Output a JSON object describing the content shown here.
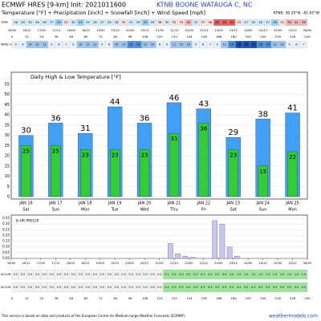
{
  "header": {
    "model": "ECMWF HRES [9-km] Init: 2021011600",
    "station": "KTNB BOONE WATAUGA C, NC",
    "subtitle": "Temperature [°F] + Precipitation [inch] + Snowfall [inch] + Wind Speed [mph]",
    "coords": "KTNB: 36.20°N, -81.65°W"
  },
  "strips": {
    "temp_label": "TEMP",
    "temps": [
      "28",
      "26",
      "30",
      "28",
      "26",
      "27",
      "25",
      "32",
      "30",
      "23",
      "29",
      "28",
      "27",
      "29",
      "28",
      "32",
      "31",
      "29",
      "25",
      "29",
      "36",
      "30",
      "35",
      "33",
      "40",
      "31",
      "37",
      "36",
      "45",
      "42",
      "43",
      "33",
      "27",
      "30",
      "28",
      "27",
      "25",
      "32",
      "38",
      "41",
      "39"
    ],
    "dates": [
      "16/00",
      "16/12",
      "17/00",
      "17/12",
      "18/00",
      "18/12",
      "19/00",
      "19/12",
      "20/00",
      "20/12",
      "21/00",
      "21/12",
      "22/00",
      "22/12",
      "23/00",
      "23/12",
      "24/00",
      "24/12",
      "25/00",
      "25/12",
      "26/00"
    ],
    "hours": [
      "0",
      "12",
      "24",
      "36",
      "48",
      "60",
      "72",
      "84",
      "96",
      "108",
      "120",
      "132",
      "144",
      "156",
      "168",
      "180",
      "192",
      "204",
      "216",
      "228",
      "240"
    ],
    "wind_label": "WIND mph",
    "wind": [
      "9",
      "8",
      "10",
      "12",
      "11",
      "9",
      "8",
      "7",
      "9",
      "10",
      "12",
      "11",
      "9",
      "8",
      "10",
      "13",
      "15",
      "14",
      "12",
      "10",
      "8",
      "9",
      "11",
      "12",
      "10",
      "9",
      "8",
      "7",
      "9",
      "11",
      "14",
      "18",
      "20",
      "19",
      "16",
      "14",
      "12",
      "10",
      "9",
      "8",
      "7"
    ],
    "accum_precip_label": "ACCUM PRECIP",
    "accum_precip": [
      "0.0",
      "0.0",
      "0.0",
      "0.0",
      "0.0",
      "0.0",
      "0.0",
      "0.0",
      "0.0",
      "0.0",
      "0.0",
      "0.0",
      "0.0",
      "0.0",
      "0.0",
      "0.0",
      "0.0",
      "0.0",
      "0.0",
      "0.0",
      "0.0",
      "0.1",
      "0.2",
      "0.2",
      "0.2",
      "0.2",
      "0.2",
      "0.2",
      "0.5",
      "0.9",
      "1.0",
      "1.0",
      "1.0",
      "1.0",
      "1.0",
      "1.0",
      "1.0",
      "1.0",
      "1.0",
      "1.0",
      "1.0"
    ],
    "accum_snow_label": "ACCUM SNOW",
    "accum_snow": [
      "0.0",
      "0.0",
      "0.0",
      "0.0",
      "0.0",
      "0.0",
      "0.0",
      "0.0",
      "0.0",
      "0.0",
      "0.0",
      "0.0",
      "0.0",
      "0.0",
      "0.0",
      "0.0",
      "0.0",
      "0.0",
      "0.0",
      "0.0",
      "0.0",
      "0.4",
      "0.5",
      "0.5",
      "0.5",
      "0.5",
      "0.5",
      "0.5",
      "0.5",
      "0.5",
      "0.5",
      "0.5",
      "0.5",
      "0.5",
      "0.5",
      "0.5",
      "0.5",
      "0.5",
      "0.5",
      "0.5",
      "0.5"
    ]
  },
  "chart_data": [
    {
      "type": "bar",
      "title": "Daily High & Low Temperature [°F]",
      "categories": [
        "JAN 16",
        "JAN 17",
        "JAN 18",
        "JAN 19",
        "JAN 20",
        "JAN 21",
        "JAN 22",
        "JAN 23",
        "JAN 24",
        "JAN 25"
      ],
      "weekdays": [
        "Sat",
        "Sun",
        "Mon",
        "Tue",
        "Wed",
        "Thu",
        "Fri",
        "Sat",
        "Sun",
        "Mon"
      ],
      "series": [
        {
          "name": "High",
          "color": "#3fa0f5",
          "values": [
            30,
            36,
            31,
            44,
            36,
            46,
            43,
            29,
            38,
            41
          ]
        },
        {
          "name": "Low",
          "color": "#33cc33",
          "values": [
            25,
            25,
            23,
            23,
            23,
            31,
            36,
            23,
            15,
            22
          ]
        }
      ],
      "ylim": [
        0,
        55
      ],
      "yticks": [
        0,
        5,
        10,
        15,
        20,
        25,
        30,
        35,
        40,
        45,
        50,
        55
      ],
      "grid": true
    },
    {
      "type": "histogram",
      "title": "6-HR PRECIP",
      "color": "#c8c8ea",
      "bins": [
        0,
        6,
        12,
        18,
        24,
        30,
        36,
        42,
        48,
        54,
        60,
        66,
        72,
        78,
        84,
        90,
        96,
        102,
        108,
        114,
        120,
        126,
        132,
        138,
        144,
        150,
        156,
        162,
        168,
        174,
        180,
        186,
        192,
        198,
        204,
        210,
        216,
        222,
        228,
        234,
        240
      ],
      "values": [
        0,
        0,
        0,
        0,
        0,
        0,
        0,
        0,
        0,
        0,
        0,
        0,
        0,
        0,
        0,
        0,
        0,
        0,
        0,
        0,
        0,
        0.13,
        0.04,
        0.02,
        0.01,
        0,
        0,
        0.33,
        0.3,
        0.1,
        0.02,
        0,
        0,
        0,
        0,
        0,
        0,
        0,
        0,
        0
      ],
      "xlim": [
        0,
        240
      ],
      "xticks": [
        {
          "value": 0,
          "label": "16/00"
        },
        {
          "value": 12,
          "label": "16/12"
        },
        {
          "value": 24,
          "label": "17/00"
        },
        {
          "value": 36,
          "label": "17/12"
        },
        {
          "value": 48,
          "label": "18/00"
        },
        {
          "value": 60,
          "label": "18/12"
        },
        {
          "value": 72,
          "label": "19/00"
        },
        {
          "value": 84,
          "label": "19/12"
        },
        {
          "value": 96,
          "label": "20/00"
        },
        {
          "value": 108,
          "label": "20/12"
        },
        {
          "value": 120,
          "label": "21/00"
        },
        {
          "value": 132,
          "label": "21/12"
        },
        {
          "value": 144,
          "label": "22/00"
        },
        {
          "value": 156,
          "label": "22/12"
        },
        {
          "value": 168,
          "label": "23/00"
        },
        {
          "value": 180,
          "label": "23/12"
        },
        {
          "value": 192,
          "label": "24/00"
        },
        {
          "value": 204,
          "label": "24/12"
        },
        {
          "value": 216,
          "label": "25/00"
        },
        {
          "value": 228,
          "label": "25/12"
        },
        {
          "value": 240,
          "label": "26/00"
        }
      ],
      "ylim": [
        0,
        0.35
      ],
      "yticks": [
        {
          "value": 0,
          "label": "0.00"
        },
        {
          "value": 0.05,
          "label": "0.05"
        },
        {
          "value": 0.1,
          "label": "0.10"
        },
        {
          "value": 0.15,
          "label": "0.15"
        },
        {
          "value": 0.2,
          "label": "0.20"
        },
        {
          "value": 0.25,
          "label": "0.25"
        },
        {
          "value": 0.3,
          "label": "0.30"
        },
        {
          "value": 0.35,
          "label": "0.35"
        }
      ],
      "grid": true
    }
  ],
  "footer": {
    "note": "This service is based on data and products of the European Centre for Medium-range Weather Forecasts (ECMWF)",
    "site": "weathermodels.com"
  }
}
